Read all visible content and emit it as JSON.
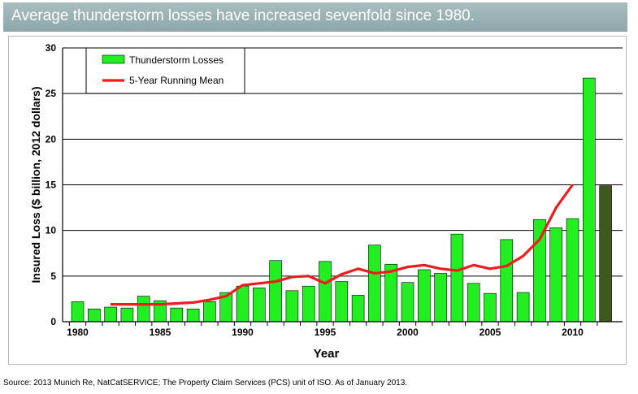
{
  "banner": {
    "title": "Average thunderstorm losses have increased sevenfold since 1980."
  },
  "source": "Source: 2013 Munich Re, NatCatSERVICE; The Property Claim Services (PCS) unit of ISO. As of January 2013.",
  "colors": {
    "bar": "#22ee22",
    "bar_highlight": "#3d5a1e",
    "line": "#ee1c1c",
    "banner": "#9cb3b5"
  },
  "chart_data": {
    "type": "bar",
    "title": "",
    "xlabel": "Year",
    "ylabel": "Insured Loss ($ billion, 2012 dollars)",
    "ylim": [
      0,
      30
    ],
    "yticks": [
      0,
      5,
      10,
      15,
      20,
      25,
      30
    ],
    "xticks": [
      1980,
      1985,
      1990,
      1995,
      2000,
      2005,
      2010
    ],
    "grid": "horizontal",
    "legend_position": "top-left",
    "categories": [
      1980,
      1981,
      1982,
      1983,
      1984,
      1985,
      1986,
      1987,
      1988,
      1989,
      1990,
      1991,
      1992,
      1993,
      1994,
      1995,
      1996,
      1997,
      1998,
      1999,
      2000,
      2001,
      2002,
      2003,
      2004,
      2005,
      2006,
      2007,
      2008,
      2009,
      2010,
      2011,
      2012
    ],
    "series": [
      {
        "name": "Thunderstorm Losses",
        "values": [
          2.2,
          1.4,
          1.6,
          1.5,
          2.8,
          2.3,
          1.5,
          1.4,
          2.2,
          3.2,
          3.9,
          3.7,
          6.7,
          3.4,
          3.9,
          6.6,
          4.4,
          2.9,
          8.4,
          6.3,
          4.3,
          5.7,
          5.3,
          9.6,
          4.2,
          3.1,
          9.0,
          3.2,
          11.2,
          10.3,
          11.3,
          26.7,
          14.9
        ]
      },
      {
        "name": "5-Year Running Mean",
        "x": [
          1982,
          1983,
          1984,
          1985,
          1986,
          1987,
          1988,
          1989,
          1990,
          1991,
          1992,
          1993,
          1994,
          1995,
          1996,
          1997,
          1998,
          1999,
          2000,
          2001,
          2002,
          2003,
          2004,
          2005,
          2006,
          2007,
          2008,
          2009,
          2010
        ],
        "values": [
          1.9,
          1.9,
          1.9,
          1.9,
          2.0,
          2.1,
          2.4,
          2.8,
          4.0,
          4.2,
          4.4,
          4.9,
          5.0,
          4.2,
          5.2,
          5.8,
          5.3,
          5.5,
          6.0,
          6.2,
          5.8,
          5.6,
          6.2,
          5.8,
          6.1,
          7.2,
          9.0,
          12.5,
          15.0
        ]
      }
    ]
  }
}
